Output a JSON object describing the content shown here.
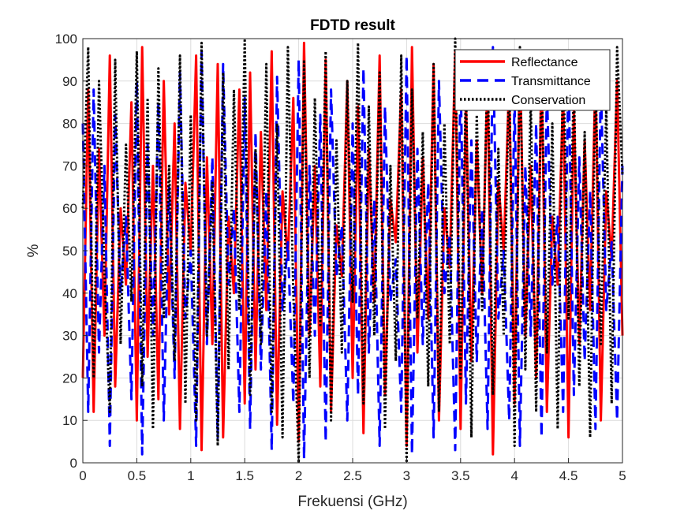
{
  "chart_data": {
    "type": "line",
    "title": "FDTD result",
    "xlabel": "Frekuensi (GHz)",
    "ylabel": "%",
    "xlim": [
      0,
      5
    ],
    "ylim": [
      0,
      100
    ],
    "xticks": [
      "0",
      "0.5",
      "1",
      "1.5",
      "2",
      "2.5",
      "3",
      "3.5",
      "4",
      "4.5",
      "5"
    ],
    "yticks": [
      "0",
      "10",
      "20",
      "30",
      "40",
      "50",
      "60",
      "70",
      "80",
      "90",
      "100"
    ],
    "grid": true,
    "legend_position": "top-right",
    "series": [
      {
        "name": "Reflectance",
        "color": "#ff0000",
        "style": "solid",
        "x": [
          0.0,
          0.05,
          0.1,
          0.15,
          0.2,
          0.25,
          0.3,
          0.35,
          0.4,
          0.45,
          0.5,
          0.55,
          0.6,
          0.65,
          0.7,
          0.75,
          0.8,
          0.85,
          0.9,
          0.95,
          1.0,
          1.05,
          1.1,
          1.15,
          1.2,
          1.25,
          1.3,
          1.35,
          1.4,
          1.45,
          1.5,
          1.55,
          1.6,
          1.65,
          1.7,
          1.75,
          1.8,
          1.85,
          1.9,
          1.95,
          2.0,
          2.05,
          2.1,
          2.15,
          2.2,
          2.25,
          2.3,
          2.35,
          2.4,
          2.45,
          2.5,
          2.55,
          2.6,
          2.65,
          2.7,
          2.75,
          2.8,
          2.85,
          2.9,
          2.95,
          3.0,
          3.05,
          3.1,
          3.15,
          3.2,
          3.25,
          3.3,
          3.35,
          3.4,
          3.45,
          3.5,
          3.55,
          3.6,
          3.65,
          3.7,
          3.75,
          3.8,
          3.85,
          3.9,
          3.95,
          4.0,
          4.05,
          4.1,
          4.15,
          4.2,
          4.25,
          4.3,
          4.35,
          4.4,
          4.45,
          4.5,
          4.55,
          4.6,
          4.65,
          4.7,
          4.75,
          4.8,
          4.85,
          4.9,
          4.95,
          5.0
        ],
        "y": [
          20,
          88,
          12,
          74,
          30,
          96,
          18,
          60,
          42,
          85,
          10,
          98,
          25,
          70,
          15,
          90,
          35,
          80,
          8,
          66,
          50,
          96,
          3,
          72,
          28,
          94,
          6,
          58,
          40,
          88,
          14,
          92,
          22,
          78,
          36,
          97,
          9,
          64,
          48,
          86,
          5,
          99,
          30,
          70,
          18,
          95,
          12,
          56,
          44,
          90,
          20,
          84,
          7,
          74,
          38,
          96,
          16,
          62,
          52,
          88,
          4,
          98,
          26,
          72,
          34,
          94,
          10,
          60,
          46,
          97,
          8,
          86,
          24,
          76,
          40,
          92,
          2,
          66,
          50,
          90,
          14,
          96,
          30,
          70,
          20,
          94,
          12,
          58,
          42,
          88,
          6,
          84,
          28,
          76,
          36,
          92,
          10,
          64,
          48,
          90,
          30
        ]
      },
      {
        "name": "Transmittance",
        "color": "#0000ff",
        "style": "dashed",
        "x": [
          0.0,
          0.05,
          0.1,
          0.15,
          0.2,
          0.25,
          0.3,
          0.35,
          0.4,
          0.45,
          0.5,
          0.55,
          0.6,
          0.65,
          0.7,
          0.75,
          0.8,
          0.85,
          0.9,
          0.95,
          1.0,
          1.05,
          1.1,
          1.15,
          1.2,
          1.25,
          1.3,
          1.35,
          1.4,
          1.45,
          1.5,
          1.55,
          1.6,
          1.65,
          1.7,
          1.75,
          1.8,
          1.85,
          1.9,
          1.95,
          2.0,
          2.05,
          2.1,
          2.15,
          2.2,
          2.25,
          2.3,
          2.35,
          2.4,
          2.45,
          2.5,
          2.55,
          2.6,
          2.65,
          2.7,
          2.75,
          2.8,
          2.85,
          2.9,
          2.95,
          3.0,
          3.05,
          3.1,
          3.15,
          3.2,
          3.25,
          3.3,
          3.35,
          3.4,
          3.45,
          3.5,
          3.55,
          3.6,
          3.65,
          3.7,
          3.75,
          3.8,
          3.85,
          3.9,
          3.95,
          4.0,
          4.05,
          4.1,
          4.15,
          4.2,
          4.25,
          4.3,
          4.35,
          4.4,
          4.45,
          4.5,
          4.55,
          4.6,
          4.65,
          4.7,
          4.75,
          4.8,
          4.85,
          4.9,
          4.95,
          5.0
        ],
        "y": [
          80,
          12,
          88,
          26,
          70,
          4,
          82,
          40,
          58,
          15,
          90,
          2,
          75,
          30,
          85,
          10,
          65,
          20,
          92,
          34,
          50,
          4,
          97,
          28,
          72,
          6,
          94,
          42,
          60,
          12,
          86,
          8,
          78,
          22,
          64,
          3,
          91,
          36,
          52,
          14,
          95,
          1,
          70,
          30,
          82,
          5,
          88,
          44,
          56,
          10,
          80,
          16,
          93,
          26,
          62,
          4,
          84,
          38,
          48,
          12,
          96,
          2,
          74,
          28,
          66,
          6,
          90,
          40,
          54,
          3,
          92,
          14,
          76,
          24,
          60,
          8,
          98,
          34,
          50,
          10,
          86,
          4,
          70,
          30,
          80,
          6,
          88,
          42,
          58,
          12,
          94,
          16,
          72,
          24,
          64,
          8,
          90,
          36,
          52,
          10,
          70
        ]
      },
      {
        "name": "Conservation",
        "color": "#000000",
        "style": "dotted",
        "x": [
          0.0,
          0.05,
          0.1,
          0.15,
          0.2,
          0.25,
          0.3,
          0.35,
          0.4,
          0.45,
          0.5,
          0.55,
          0.6,
          0.65,
          0.7,
          0.75,
          0.8,
          0.85,
          0.9,
          0.95,
          1.0,
          1.05,
          1.1,
          1.15,
          1.2,
          1.25,
          1.3,
          1.35,
          1.4,
          1.45,
          1.5,
          1.55,
          1.6,
          1.65,
          1.7,
          1.75,
          1.8,
          1.85,
          1.9,
          1.95,
          2.0,
          2.05,
          2.1,
          2.15,
          2.2,
          2.25,
          2.3,
          2.35,
          2.4,
          2.45,
          2.5,
          2.55,
          2.6,
          2.65,
          2.7,
          2.75,
          2.8,
          2.85,
          2.9,
          2.95,
          3.0,
          3.05,
          3.1,
          3.15,
          3.2,
          3.25,
          3.3,
          3.35,
          3.4,
          3.45,
          3.5,
          3.55,
          3.6,
          3.65,
          3.7,
          3.75,
          3.8,
          3.85,
          3.9,
          3.95,
          4.0,
          4.05,
          4.1,
          4.15,
          4.2,
          4.25,
          4.3,
          4.35,
          4.4,
          4.45,
          4.5,
          4.55,
          4.6,
          4.65,
          4.7,
          4.75,
          4.8,
          4.85,
          4.9,
          4.95,
          5.0
        ],
        "y": [
          60,
          98,
          20,
          90,
          45,
          12,
          95,
          28,
          75,
          38,
          97,
          18,
          86,
          8,
          93,
          34,
          70,
          24,
          96,
          14,
          82,
          10,
          99,
          30,
          66,
          4,
          92,
          22,
          88,
          36,
          100,
          16,
          74,
          28,
          94,
          12,
          80,
          6,
          98,
          40,
          0,
          95,
          20,
          86,
          32,
          97,
          10,
          76,
          26,
          90,
          38,
          99,
          14,
          84,
          30,
          92,
          8,
          70,
          24,
          96,
          0,
          88,
          34,
          78,
          18,
          94,
          12,
          80,
          28,
          100,
          20,
          90,
          6,
          82,
          36,
          96,
          16,
          74,
          30,
          92,
          4,
          98,
          22,
          86,
          12,
          94,
          26,
          80,
          8,
          96,
          34,
          90,
          18,
          78,
          6,
          92,
          28,
          84,
          14,
          98,
          68
        ]
      }
    ]
  }
}
